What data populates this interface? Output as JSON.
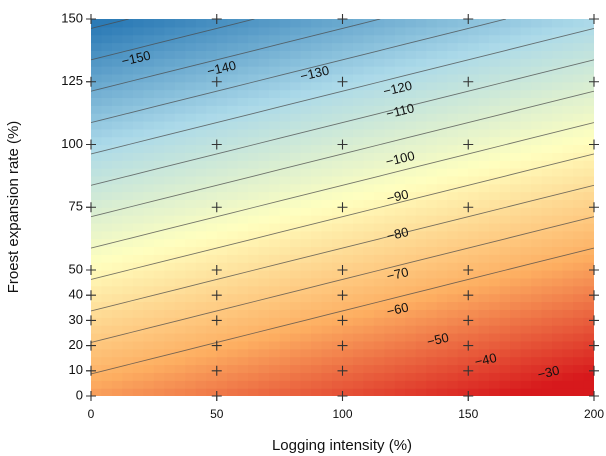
{
  "chart_data": {
    "type": "heatmap",
    "title": "",
    "xlabel": "Logging intensity (%)",
    "ylabel": "Froest expansion rate (%)",
    "xlim": [
      0,
      200
    ],
    "ylim": [
      0,
      150
    ],
    "x_ticks": [
      0,
      50,
      100,
      150,
      200
    ],
    "y_ticks": [
      0,
      10,
      20,
      30,
      40,
      50,
      75,
      100,
      125,
      150
    ],
    "y_scale": "piecewise linear: 0-50 step 10, 50-150 step 25",
    "grid": false,
    "colormap": [
      "#d7191c",
      "#fdae61",
      "#ffffbf",
      "#abd9e9",
      "#2c7bb6"
    ],
    "contour_levels": [
      -150,
      -140,
      -130,
      -120,
      -110,
      -100,
      -90,
      -80,
      -70,
      -60,
      -50,
      -40,
      -30
    ],
    "contour_labels": [
      "−150",
      "−140",
      "−130",
      "−120",
      "−110",
      "−100",
      "−90",
      "−80",
      "−70",
      "−60",
      "−50",
      "−40",
      "−30"
    ],
    "contour_label_positions": [
      {
        "x": 18,
        "y": 134
      },
      {
        "x": 52,
        "y": 130
      },
      {
        "x": 89,
        "y": 128
      },
      {
        "x": 122,
        "y": 122
      },
      {
        "x": 123,
        "y": 113
      },
      {
        "x": 123,
        "y": 94
      },
      {
        "x": 122,
        "y": 79
      },
      {
        "x": 122,
        "y": 64
      },
      {
        "x": 122,
        "y": 48
      },
      {
        "x": 122,
        "y": 34
      },
      {
        "x": 138,
        "y": 22
      },
      {
        "x": 157,
        "y": 14
      },
      {
        "x": 182,
        "y": 9
      }
    ],
    "sample_points": {
      "x": [
        0,
        50,
        100,
        150,
        200
      ],
      "y": [
        0,
        10,
        20,
        30,
        40,
        50,
        75,
        100,
        125,
        150
      ]
    }
  }
}
